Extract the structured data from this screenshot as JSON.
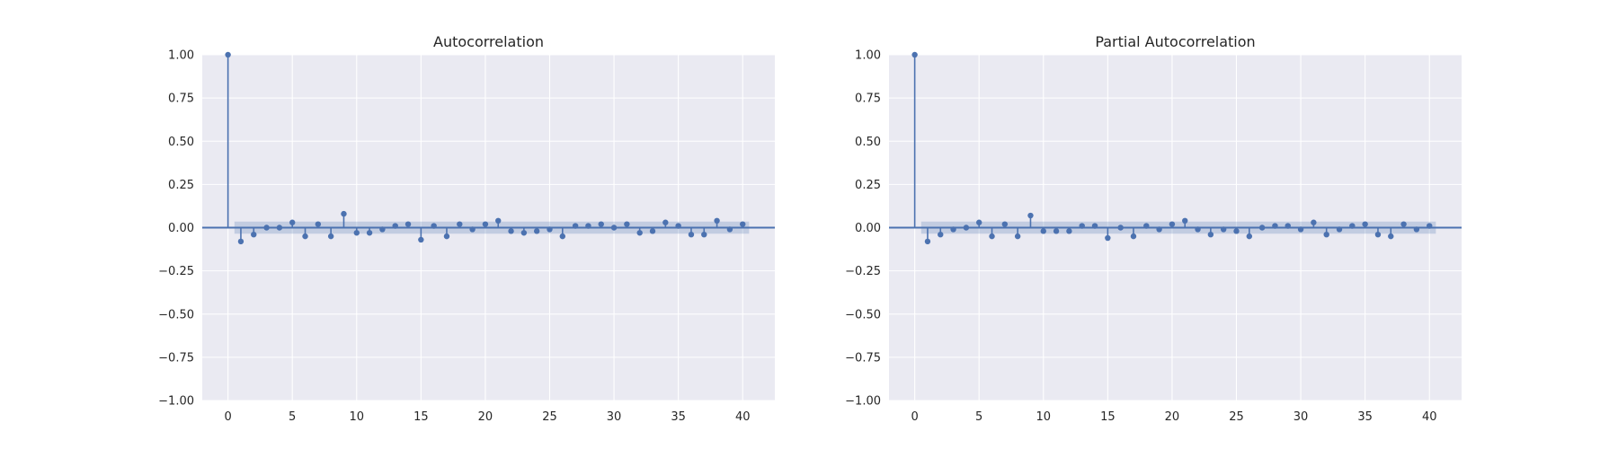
{
  "colors": {
    "figure_background": "#ffffff",
    "axes_background": "#eaeaf2",
    "grid": "#ffffff",
    "series": "#4c72b0",
    "confidence_band": "#4c72b0",
    "text": "#262626"
  },
  "chart_data": [
    {
      "type": "stem",
      "title": "Autocorrelation",
      "xlabel": "",
      "ylabel": "",
      "xlim": [
        -2,
        42.5
      ],
      "ylim": [
        -1.0,
        1.0
      ],
      "xticks": [
        0,
        5,
        10,
        15,
        20,
        25,
        30,
        35,
        40
      ],
      "yticks": [
        1.0,
        0.75,
        0.5,
        0.25,
        0.0,
        -0.25,
        -0.5,
        -0.75,
        -1.0
      ],
      "ytick_labels": [
        "1.00",
        "0.75",
        "0.50",
        "0.25",
        "0.00",
        "−0.25",
        "−0.50",
        "−0.75",
        "−1.00"
      ],
      "xtick_labels": [
        "0",
        "5",
        "10",
        "15",
        "20",
        "25",
        "30",
        "35",
        "40"
      ],
      "grid": true,
      "confidence_band": {
        "x_start": 0.5,
        "x_end": 40.5,
        "upper": 0.035,
        "lower": -0.035
      },
      "lags": [
        0,
        1,
        2,
        3,
        4,
        5,
        6,
        7,
        8,
        9,
        10,
        11,
        12,
        13,
        14,
        15,
        16,
        17,
        18,
        19,
        20,
        21,
        22,
        23,
        24,
        25,
        26,
        27,
        28,
        29,
        30,
        31,
        32,
        33,
        34,
        35,
        36,
        37,
        38,
        39,
        40
      ],
      "values": [
        1.0,
        -0.08,
        -0.04,
        0.0,
        0.0,
        0.03,
        -0.05,
        0.02,
        -0.05,
        0.08,
        -0.03,
        -0.03,
        -0.01,
        0.01,
        0.02,
        -0.07,
        0.01,
        -0.05,
        0.02,
        -0.01,
        0.02,
        0.04,
        -0.02,
        -0.03,
        -0.02,
        -0.01,
        -0.05,
        0.01,
        0.01,
        0.02,
        0.0,
        0.02,
        -0.03,
        -0.02,
        0.03,
        0.01,
        -0.04,
        -0.04,
        0.04,
        -0.01,
        0.02
      ]
    },
    {
      "type": "stem",
      "title": "Partial Autocorrelation",
      "xlabel": "",
      "ylabel": "",
      "xlim": [
        -2,
        42.5
      ],
      "ylim": [
        -1.0,
        1.0
      ],
      "xticks": [
        0,
        5,
        10,
        15,
        20,
        25,
        30,
        35,
        40
      ],
      "yticks": [
        1.0,
        0.75,
        0.5,
        0.25,
        0.0,
        -0.25,
        -0.5,
        -0.75,
        -1.0
      ],
      "ytick_labels": [
        "1.00",
        "0.75",
        "0.50",
        "0.25",
        "0.00",
        "−0.25",
        "−0.50",
        "−0.75",
        "−1.00"
      ],
      "xtick_labels": [
        "0",
        "5",
        "10",
        "15",
        "20",
        "25",
        "30",
        "35",
        "40"
      ],
      "grid": true,
      "confidence_band": {
        "x_start": 0.5,
        "x_end": 40.5,
        "upper": 0.035,
        "lower": -0.035
      },
      "lags": [
        0,
        1,
        2,
        3,
        4,
        5,
        6,
        7,
        8,
        9,
        10,
        11,
        12,
        13,
        14,
        15,
        16,
        17,
        18,
        19,
        20,
        21,
        22,
        23,
        24,
        25,
        26,
        27,
        28,
        29,
        30,
        31,
        32,
        33,
        34,
        35,
        36,
        37,
        38,
        39,
        40
      ],
      "values": [
        1.0,
        -0.08,
        -0.04,
        -0.01,
        0.0,
        0.03,
        -0.05,
        0.02,
        -0.05,
        0.07,
        -0.02,
        -0.02,
        -0.02,
        0.01,
        0.01,
        -0.06,
        0.0,
        -0.05,
        0.01,
        -0.01,
        0.02,
        0.04,
        -0.01,
        -0.04,
        -0.01,
        -0.02,
        -0.05,
        0.0,
        0.01,
        0.01,
        -0.01,
        0.03,
        -0.04,
        -0.01,
        0.01,
        0.02,
        -0.04,
        -0.05,
        0.02,
        -0.01,
        0.01
      ]
    }
  ]
}
